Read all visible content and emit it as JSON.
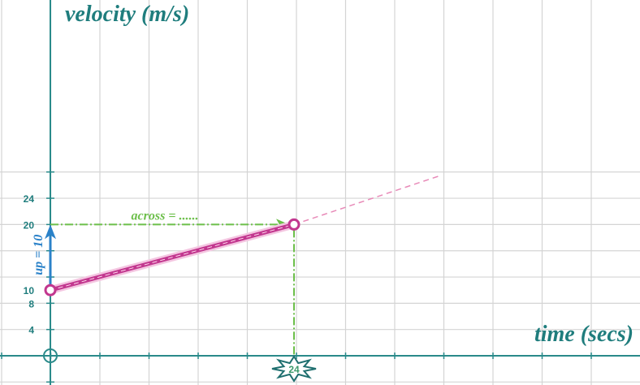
{
  "chart_data": {
    "type": "line",
    "title": "",
    "xlabel": "time (secs)",
    "ylabel": "velocity (m/s)",
    "xlim": [
      -2,
      35.5
    ],
    "ylim": [
      -2,
      28
    ],
    "y_ticks": [
      4,
      8,
      10,
      20,
      24
    ],
    "y_tick_labels": [
      "4",
      "8",
      "10",
      "20",
      "24"
    ],
    "x_tick_label": "24",
    "grid": true,
    "series": [
      {
        "name": "",
        "x": [
          0,
          24
        ],
        "y": [
          10,
          20
        ],
        "style": "solid",
        "color": "#c2378f"
      }
    ],
    "extension": {
      "x": [
        24,
        38.5
      ],
      "y": [
        20,
        27.5
      ],
      "style": "dashed",
      "color": "#e88ab8"
    },
    "annotations": {
      "up_label": "up = 10",
      "across_label": "across = ......",
      "up_arrow": {
        "x": 0,
        "y_from": 10,
        "y_to": 20,
        "color": "#2b82c9"
      },
      "across_arrow": {
        "y": 20,
        "x_from": 0,
        "x_to": 24,
        "color": "#6cbf4a"
      },
      "drop_line": {
        "x": 24,
        "y_from": 20,
        "y_to": 0,
        "color": "#6cbf4a"
      }
    },
    "colors": {
      "axis": "#2a8a8a",
      "grid": "#d4d4d4",
      "text": "#1f7d7d",
      "star_fill": "#ffffff",
      "star_stroke": "#1f6f6f"
    }
  }
}
